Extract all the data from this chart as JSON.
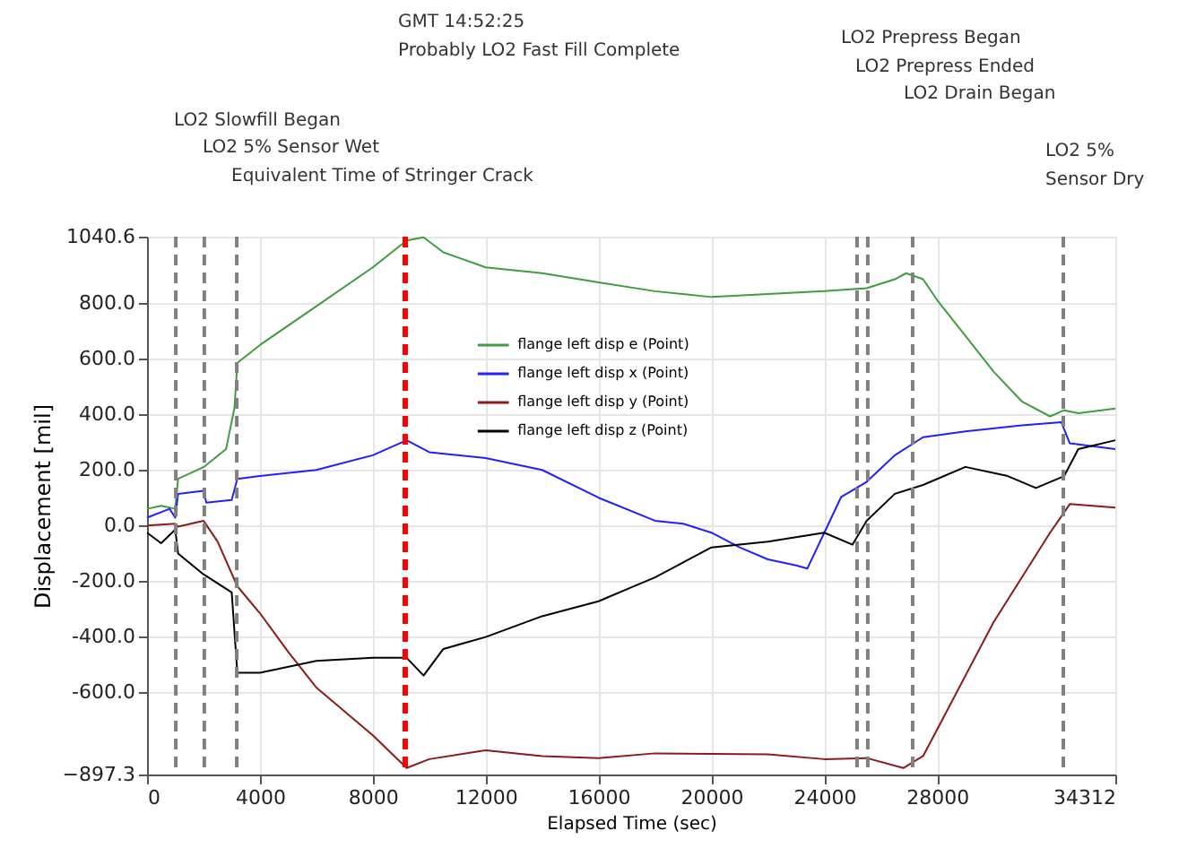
{
  "chart_data": {
    "type": "line",
    "xlabel": "Elapsed Time (sec)",
    "ylabel": "Displacement [mil]",
    "xlim": [
      0,
      34312
    ],
    "xticks": [
      0,
      4000,
      8000,
      12000,
      16000,
      20000,
      24000,
      28000,
      34312
    ],
    "ylim": [
      -897.3,
      1040.6
    ],
    "yticks": [
      -897.3,
      {
        "value": -600,
        "label": "-600.0"
      },
      {
        "value": -400,
        "label": "-400.0"
      },
      {
        "value": -200,
        "label": "-200.0"
      },
      {
        "value": 0,
        "label": "0.0"
      },
      {
        "value": 200,
        "label": "200.0"
      },
      {
        "value": 400,
        "label": "400.0"
      },
      {
        "value": 600,
        "label": "600.0"
      },
      {
        "value": 800,
        "label": "800.0"
      },
      1040.6
    ],
    "grid": true,
    "legend": "top",
    "marker": "none",
    "line_style": "solid",
    "series": [
      {
        "name": "flange left disp e (Point)",
        "color": "#3c9e3c",
        "x": [
          0,
          500,
          1000,
          1100,
          2000,
          2800,
          3100,
          3200,
          4000,
          6000,
          8000,
          9200,
          9800,
          10500,
          12000,
          14000,
          16000,
          18000,
          20000,
          22000,
          24000,
          25500,
          26500,
          26900,
          27500,
          28000,
          29000,
          30000,
          31000,
          32000,
          32500,
          33000,
          34312
        ],
        "values": [
          60,
          71,
          60,
          168,
          210,
          275,
          425,
          586,
          650,
          790,
          930,
          1027,
          1038,
          984,
          930,
          909,
          876,
          844,
          823,
          834,
          844,
          855,
          887,
          909,
          887,
          812,
          683,
          554,
          447,
          393,
          415,
          404,
          421
        ]
      },
      {
        "name": "flange left disp x (Point)",
        "color": "#2020ff",
        "x": [
          0,
          800,
          1000,
          1100,
          2000,
          2100,
          3000,
          3200,
          4000,
          6000,
          8000,
          9200,
          10000,
          12000,
          14000,
          16000,
          18000,
          19000,
          20000,
          21000,
          22000,
          23000,
          23400,
          24000,
          24600,
          25500,
          26500,
          27500,
          29000,
          31000,
          32400,
          32700,
          34312
        ],
        "values": [
          28,
          60,
          28,
          114,
          125,
          82,
          92,
          168,
          178,
          200,
          253,
          307,
          264,
          243,
          200,
          100,
          17,
          6,
          -26,
          -79,
          -122,
          -144,
          -155,
          -26,
          103,
          157,
          253,
          318,
          339,
          361,
          372,
          296,
          275
        ]
      },
      {
        "name": "flange left disp y (Point)",
        "color": "#8b1a1a",
        "x": [
          0,
          1000,
          1100,
          2000,
          2500,
          3200,
          4000,
          5000,
          6000,
          8000,
          9200,
          10000,
          12000,
          14000,
          16000,
          18000,
          22000,
          24000,
          25500,
          26800,
          27500,
          28000,
          30000,
          32000,
          32700,
          34312
        ],
        "values": [
          0,
          6,
          -4,
          17,
          -58,
          -219,
          -316,
          -455,
          -584,
          -756,
          -874,
          -842,
          -810,
          -831,
          -838,
          -821,
          -825,
          -842,
          -838,
          -874,
          -831,
          -735,
          -348,
          -26,
          77,
          64
        ]
      },
      {
        "name": "flange left disp z (Point)",
        "color": "#000000",
        "x": [
          0,
          500,
          1000,
          1100,
          2000,
          3000,
          3200,
          4000,
          6000,
          8000,
          9200,
          9800,
          10500,
          12000,
          14000,
          16000,
          17000,
          18000,
          20000,
          22000,
          24000,
          25000,
          25500,
          26500,
          27500,
          29000,
          30500,
          31500,
          32500,
          33000,
          34312
        ],
        "values": [
          -26,
          -64,
          -15,
          -101,
          -176,
          -241,
          -531,
          -531,
          -488,
          -477,
          -477,
          -541,
          -445,
          -402,
          -327,
          -273,
          -230,
          -187,
          -79,
          -58,
          -26,
          -69,
          17,
          114,
          146,
          211,
          178,
          135,
          178,
          275,
          307
        ]
      }
    ],
    "ref_lines": [
      {
        "axis": "x",
        "value": 1020,
        "color": "#808080",
        "line_style": "dashed"
      },
      {
        "axis": "x",
        "value": 2030,
        "color": "#808080",
        "line_style": "dashed"
      },
      {
        "axis": "x",
        "value": 3180,
        "color": "#808080",
        "line_style": "dashed"
      },
      {
        "axis": "x",
        "value": 9150,
        "color": "#ff0000",
        "line_style": "dashed"
      },
      {
        "axis": "x",
        "value": 25160,
        "color": "#808080",
        "line_style": "dashed"
      },
      {
        "axis": "x",
        "value": 25540,
        "color": "#808080",
        "line_style": "dashed"
      },
      {
        "axis": "x",
        "value": 27130,
        "color": "#808080",
        "line_style": "dashed"
      },
      {
        "axis": "x",
        "value": 32470,
        "color": "#808080",
        "line_style": "dashed"
      }
    ],
    "annotations": [
      "GMT 14:52:25",
      "Probably LO2 Fast Fill Complete",
      "LO2 Prepress Began",
      "LO2 Prepress Ended",
      "LO2 Drain Began",
      "LO2 Slowfill Began",
      "LO2 5% Sensor Wet",
      "LO2 5%",
      "Equivalent Time of Stringer Crack",
      "Sensor Dry"
    ]
  }
}
